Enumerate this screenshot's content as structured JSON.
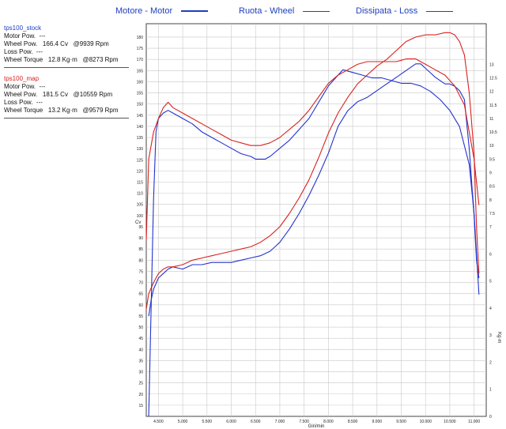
{
  "legend_top": [
    {
      "label": "Motore - Motor",
      "color": "#1f3fbf"
    },
    {
      "label": "Ruota - Wheel",
      "color": "#1f3fbf"
    },
    {
      "label": "Dissipata - Loss",
      "color": "#1f3fbf"
    }
  ],
  "runs": [
    {
      "name": "tps100_stock",
      "color": "#1f3fbf",
      "motor_pow": "Motor Pow.  ---",
      "wheel_pow_label": "Wheel Pow.",
      "wheel_pow_value": "166.4 Cv",
      "wheel_pow_rpm": "@9939 Rpm",
      "loss_pow": "Loss Pow.  ---",
      "wheel_torque_label": "Wheel Torque",
      "wheel_torque_value": "12.8 Kg·m",
      "wheel_torque_rpm": "@8273 Rpm"
    },
    {
      "name": "tps100_map",
      "color": "#d8231f",
      "motor_pow": "Motor Pow.  ---",
      "wheel_pow_label": "Wheel Pow.",
      "wheel_pow_value": "181.5 Cv",
      "wheel_pow_rpm": "@10559 Rpm",
      "loss_pow": "Loss Pow.  ---",
      "wheel_torque_label": "Wheel Torque",
      "wheel_torque_value": "13.2 Kg·m",
      "wheel_torque_rpm": "@9579 Rpm"
    }
  ],
  "chart_data": {
    "type": "line",
    "xlabel": "Giri/min",
    "ylabel_left": "Cv",
    "ylabel_right": "Kg·m",
    "xlim": [
      4250,
      11250
    ],
    "ylim_left": [
      10,
      186
    ],
    "ylim_right": [
      0,
      14.5
    ],
    "x_ticks": [
      4500,
      5000,
      5500,
      6000,
      6500,
      7000,
      7500,
      8000,
      8500,
      9000,
      9500,
      10000,
      10500,
      11000
    ],
    "x_tick_labels": [
      "4.500",
      "5.000",
      "5.500",
      "6.000",
      "6.500",
      "7.000",
      "7.500",
      "8.000",
      "8.500",
      "9.000",
      "9.500",
      "10.000",
      "10.500",
      "11.000"
    ],
    "y_left_ticks": [
      15,
      20,
      25,
      30,
      35,
      40,
      45,
      50,
      55,
      60,
      65,
      70,
      75,
      80,
      85,
      90,
      95,
      100,
      105,
      110,
      115,
      120,
      125,
      130,
      135,
      140,
      145,
      150,
      155,
      160,
      165,
      170,
      175,
      180
    ],
    "y_right_ticks": [
      0,
      0.5,
      1,
      1.5,
      2,
      2.5,
      3,
      3.5,
      4,
      4.5,
      5,
      5.5,
      6,
      6.5,
      7,
      7.5,
      8,
      8.5,
      9,
      9.5,
      10,
      10.5,
      11,
      11.5,
      12,
      12.5,
      13
    ],
    "y_right_tick_labels": [
      "0",
      "",
      "1",
      "",
      "2",
      "",
      "3",
      "",
      "4",
      "",
      "5",
      "",
      "6",
      "",
      "7",
      "7.5",
      "8",
      "8.5",
      "9",
      "9.5",
      "10",
      "10.5",
      "11",
      "11.5",
      "12",
      "12.5",
      "13"
    ],
    "grid": true,
    "series": [
      {
        "name": "tps100_stock",
        "kind": "power",
        "axis": "left",
        "color": "#2233cc",
        "x": [
          4300,
          4350,
          4400,
          4500,
          4600,
          4700,
          4800,
          5000,
          5200,
          5400,
          5600,
          5800,
          6000,
          6200,
          6400,
          6600,
          6700,
          6800,
          6900,
          7000,
          7200,
          7400,
          7600,
          7800,
          8000,
          8200,
          8400,
          8600,
          8800,
          9000,
          9200,
          9400,
          9600,
          9800,
          9900,
          10000,
          10100,
          10200,
          10400,
          10500,
          10600,
          10700,
          10800,
          10900,
          11000,
          11050,
          11100
        ],
        "y": [
          55,
          62,
          67,
          72,
          74,
          76,
          77,
          76,
          78,
          78,
          79,
          79,
          79,
          80,
          81,
          82,
          83,
          84,
          86,
          88,
          94,
          101,
          109,
          118,
          128,
          140,
          147,
          151,
          153,
          156,
          159,
          162,
          165,
          168,
          168,
          166,
          164,
          162,
          159,
          159,
          158,
          156,
          152,
          130,
          100,
          80,
          72
        ]
      },
      {
        "name": "tps100_map",
        "kind": "power",
        "axis": "left",
        "color": "#d8231f",
        "x": [
          4250,
          4300,
          4400,
          4500,
          4600,
          4700,
          4800,
          5000,
          5200,
          5400,
          5600,
          5800,
          6000,
          6200,
          6400,
          6600,
          6800,
          7000,
          7200,
          7400,
          7600,
          7800,
          8000,
          8200,
          8400,
          8600,
          8800,
          9000,
          9200,
          9400,
          9600,
          9800,
          10000,
          10200,
          10400,
          10500,
          10600,
          10700,
          10800,
          10900,
          11000,
          11050,
          11100
        ],
        "y": [
          58,
          65,
          70,
          74,
          76,
          77,
          77,
          78,
          80,
          81,
          82,
          83,
          84,
          85,
          86,
          88,
          91,
          95,
          101,
          108,
          116,
          126,
          137,
          146,
          153,
          159,
          163,
          167,
          170,
          174,
          178,
          180,
          181,
          181,
          182,
          182,
          181,
          178,
          172,
          155,
          128,
          95,
          74
        ]
      },
      {
        "name": "tps100_stock",
        "kind": "torque",
        "axis": "right",
        "color": "#2233cc",
        "x": [
          4300,
          4400,
          4450,
          4500,
          4600,
          4700,
          4800,
          5000,
          5200,
          5400,
          5600,
          5800,
          6000,
          6200,
          6400,
          6500,
          6600,
          6700,
          6800,
          7000,
          7200,
          7400,
          7600,
          7800,
          8000,
          8200,
          8300,
          8500,
          8700,
          8900,
          9100,
          9300,
          9500,
          9700,
          9900,
          10100,
          10300,
          10500,
          10700,
          10900,
          11000,
          11050,
          11100
        ],
        "y": [
          0,
          8,
          10.5,
          11,
          11.2,
          11.3,
          11.2,
          11,
          10.8,
          10.5,
          10.3,
          10.1,
          9.9,
          9.7,
          9.6,
          9.5,
          9.5,
          9.5,
          9.6,
          9.9,
          10.2,
          10.6,
          11,
          11.6,
          12.2,
          12.6,
          12.8,
          12.7,
          12.6,
          12.5,
          12.5,
          12.4,
          12.3,
          12.3,
          12.2,
          12,
          11.7,
          11.3,
          10.7,
          9.3,
          7.5,
          6,
          4.5
        ]
      },
      {
        "name": "tps100_map",
        "kind": "torque",
        "axis": "right",
        "color": "#d8231f",
        "x": [
          4250,
          4300,
          4400,
          4500,
          4600,
          4700,
          4800,
          5000,
          5200,
          5400,
          5600,
          5800,
          6000,
          6200,
          6400,
          6600,
          6800,
          7000,
          7200,
          7400,
          7600,
          7800,
          8000,
          8200,
          8400,
          8600,
          8800,
          9000,
          9200,
          9400,
          9600,
          9800,
          10000,
          10200,
          10400,
          10600,
          10800,
          11000,
          11100
        ],
        "y": [
          6.5,
          9.5,
          10.5,
          11,
          11.4,
          11.6,
          11.4,
          11.2,
          11,
          10.8,
          10.6,
          10.4,
          10.2,
          10.1,
          10,
          10,
          10.1,
          10.3,
          10.6,
          10.9,
          11.3,
          11.8,
          12.3,
          12.6,
          12.8,
          13,
          13.1,
          13.1,
          13.1,
          13.1,
          13.2,
          13.2,
          13,
          12.8,
          12.6,
          12.2,
          11.5,
          9.5,
          7.8
        ]
      }
    ]
  }
}
